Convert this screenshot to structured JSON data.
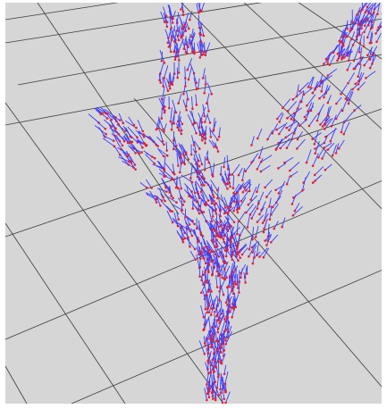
{
  "scene": {
    "description_kind": "3d-vector-field-render",
    "colors": {
      "floor": "#d6d6d6",
      "grid_line": "#3c3c3c",
      "page_border": "#ffffff",
      "vector_shaft": "#3a3aff",
      "vector_head": "#e0203a"
    },
    "branches": [
      "left-branch",
      "center-branch",
      "right-branch",
      "trunk"
    ]
  }
}
